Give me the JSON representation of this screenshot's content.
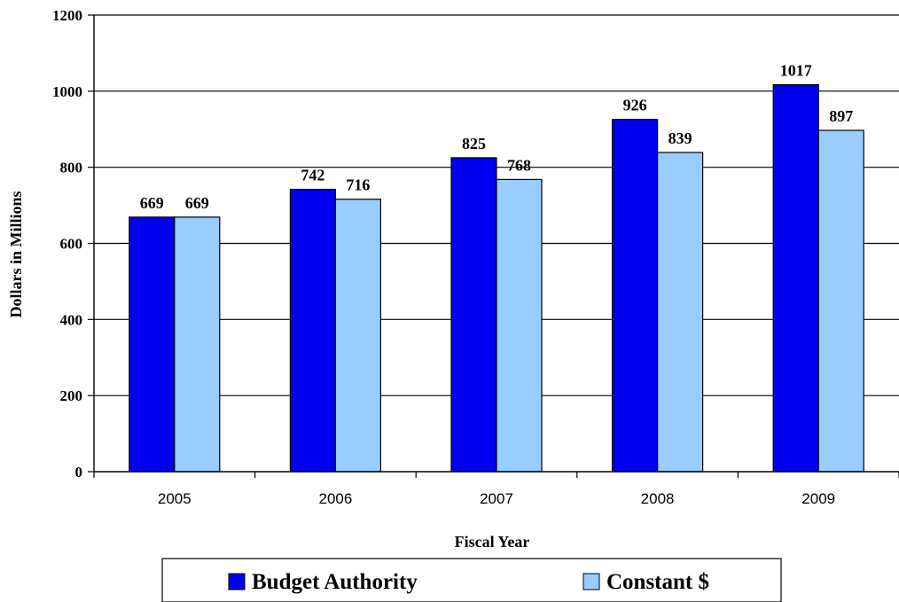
{
  "chart_data": {
    "type": "bar",
    "categories": [
      "2005",
      "2006",
      "2007",
      "2008",
      "2009"
    ],
    "series": [
      {
        "name": "Budget Authority",
        "values": [
          669,
          742,
          825,
          926,
          1017
        ],
        "color": "#0000ee"
      },
      {
        "name": "Constant $",
        "values": [
          669,
          716,
          768,
          839,
          897
        ],
        "color": "#99ccff"
      }
    ],
    "title": "",
    "xlabel": "Fiscal Year",
    "ylabel": "Dollars in Millions",
    "ylim": [
      0,
      1200
    ],
    "yticks": [
      "0",
      "200",
      "400",
      "600",
      "800",
      "1000",
      "1200"
    ],
    "grid": true,
    "legend": "bottom"
  }
}
